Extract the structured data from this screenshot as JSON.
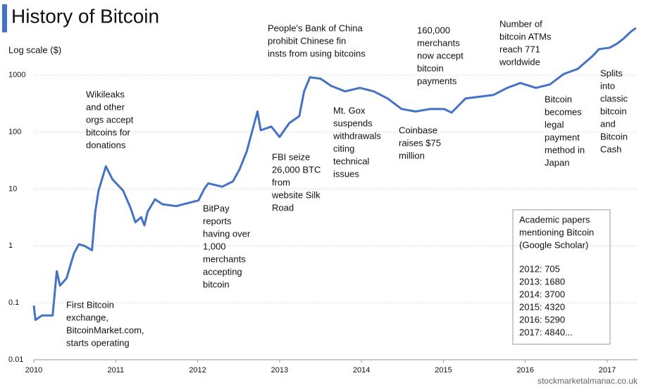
{
  "chart_data": {
    "type": "line",
    "title": "History of Bitcoin",
    "y_label": "Log scale ($)",
    "yscale": "log",
    "color": "#4472c4",
    "grid": true,
    "x": [
      2010.0,
      2010.02,
      2010.1,
      2010.23,
      2010.28,
      2010.32,
      2010.4,
      2010.49,
      2010.55,
      2010.62,
      2010.71,
      2010.75,
      2010.79,
      2010.88,
      2010.96,
      2011.09,
      2011.18,
      2011.24,
      2011.31,
      2011.35,
      2011.39,
      2011.48,
      2011.57,
      2011.74,
      2012.01,
      2012.08,
      2012.13,
      2012.3,
      2012.43,
      2012.51,
      2012.6,
      2012.73,
      2012.77,
      2012.9,
      2013.0,
      2013.12,
      2013.24,
      2013.3,
      2013.37,
      2013.5,
      2013.63,
      2013.8,
      2013.98,
      2014.15,
      2014.32,
      2014.49,
      2014.66,
      2014.84,
      2015.01,
      2015.1,
      2015.27,
      2015.61,
      2015.78,
      2015.94,
      2016.13,
      2016.3,
      2016.47,
      2016.64,
      2016.82,
      2016.9,
      2017.03,
      2017.12,
      2017.2,
      2017.29,
      2017.35
    ],
    "values": [
      0.09,
      0.05,
      0.06,
      0.06,
      0.36,
      0.2,
      0.27,
      0.74,
      1.07,
      1,
      0.84,
      4,
      9.4,
      25,
      14.8,
      9.4,
      4.7,
      2.6,
      3.2,
      2.3,
      4,
      6.6,
      5.4,
      5,
      6.3,
      10,
      12.6,
      11,
      13.6,
      22,
      46,
      230,
      108,
      125,
      82,
      145,
      190,
      520,
      920,
      870,
      650,
      520,
      600,
      520,
      390,
      255,
      230,
      255,
      254,
      220,
      390,
      450,
      600,
      730,
      600,
      690,
      1050,
      1290,
      2160,
      2870,
      3040,
      3600,
      4400,
      5850,
      6740
    ],
    "xlim": [
      2010,
      2017.37
    ],
    "xticks": [
      2010,
      2011,
      2012,
      2013,
      2014,
      2015,
      2016,
      2017
    ],
    "ylim": [
      0.01,
      10000
    ],
    "yticks": [
      0.01,
      0.1,
      1,
      10,
      100,
      1000
    ],
    "annotations": [
      {
        "lines": [
          "First Bitcoin",
          "exchange,",
          "BitcoinMarket.com,",
          "starts operating"
        ]
      },
      {
        "lines": [
          "Wikileaks",
          "and other",
          "orgs accept",
          "bitcoins for",
          "donations"
        ]
      },
      {
        "lines": [
          "BitPay",
          "reports",
          "having over",
          "1,000",
          "merchants",
          "accepting",
          "bitcoin"
        ]
      },
      {
        "lines": [
          "FBI seize",
          "26,000 BTC",
          "from",
          "website Silk",
          "Road"
        ]
      },
      {
        "lines": [
          "People's Bank of China",
          "prohibit Chinese fin",
          "insts from using bitcoins"
        ]
      },
      {
        "lines": [
          "Mt. Gox",
          "suspends",
          "withdrawals",
          "citing",
          "technical",
          "issues"
        ]
      },
      {
        "lines": [
          "160,000",
          "merchants",
          "now accept",
          "bitcoin",
          "payments"
        ]
      },
      {
        "lines": [
          "Coinbase",
          "raises $75",
          "million"
        ]
      },
      {
        "lines": [
          "Number of",
          "bitcoin ATMs",
          "reach 771",
          "worldwide"
        ]
      },
      {
        "lines": [
          "Bitcoin",
          "becomes",
          "legal",
          "payment",
          "method in",
          "Japan"
        ]
      },
      {
        "lines": [
          "Splits",
          "into",
          "classic",
          "bitcoin",
          "and",
          "Bitcoin",
          "Cash"
        ]
      }
    ],
    "papers_box": {
      "heading": [
        "Academic papers",
        "mentioning Bitcoin",
        "(Google Scholar)"
      ],
      "rows": [
        "2012:  705",
        "2013:  1680",
        "2014:  3700",
        "2015:  4320",
        "2016:  5290",
        "2017:  4840..."
      ]
    },
    "source": "stockmarketalmanac.co.uk"
  }
}
